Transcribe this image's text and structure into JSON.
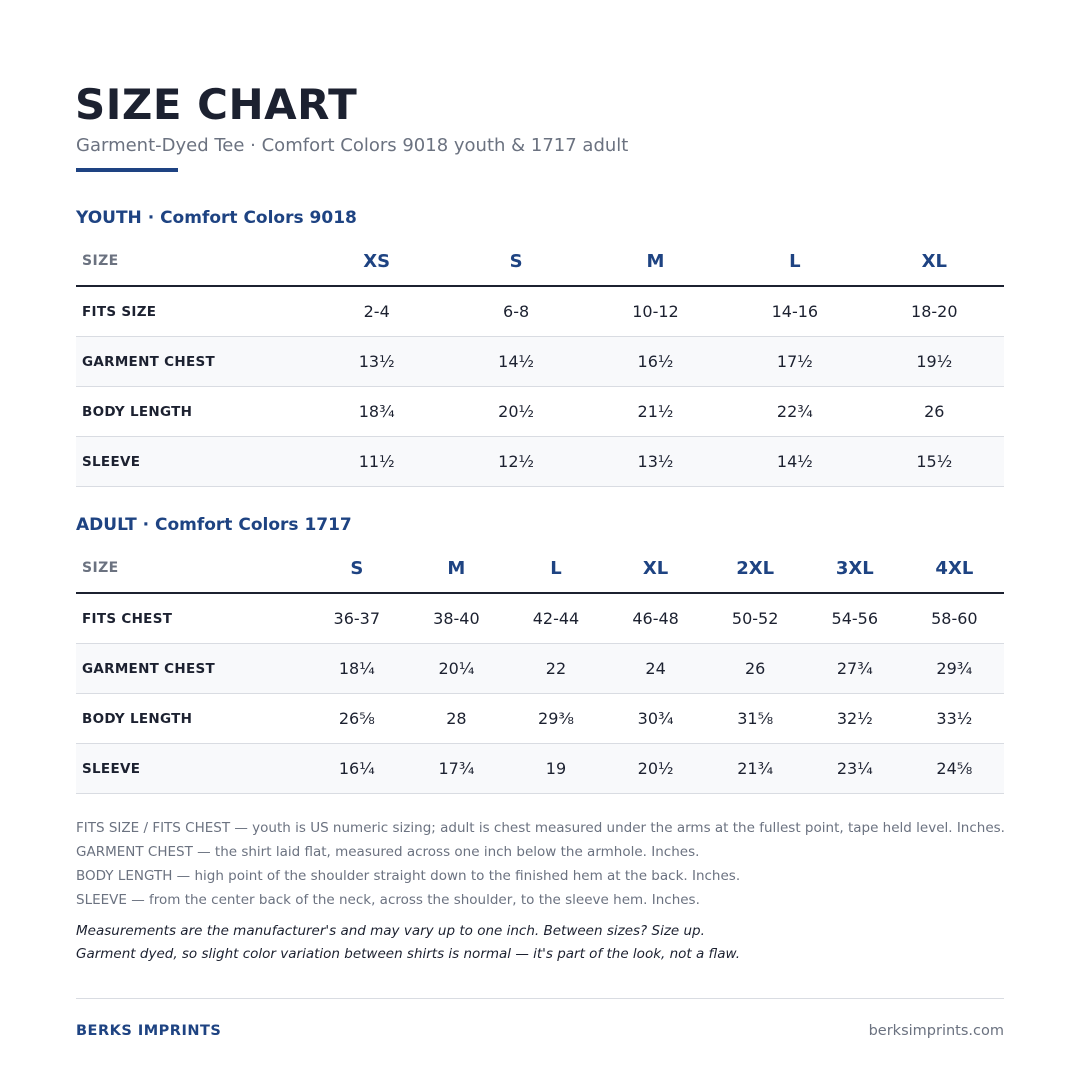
{
  "header": {
    "title": "SIZE CHART",
    "subtitle": "Garment-Dyed Tee  ·  Comfort Colors 9018 youth & 1717 adult"
  },
  "youth": {
    "section_title": "YOUTH  ·  Comfort Colors 9018",
    "corner_label": "SIZE",
    "sizes": [
      "XS",
      "S",
      "M",
      "L",
      "XL"
    ],
    "rows": [
      {
        "label": "FITS SIZE",
        "values": [
          "2-4",
          "6-8",
          "10-12",
          "14-16",
          "18-20"
        ]
      },
      {
        "label": "GARMENT CHEST",
        "values": [
          "13½",
          "14½",
          "16½",
          "17½",
          "19½"
        ]
      },
      {
        "label": "BODY LENGTH",
        "values": [
          "18¾",
          "20½",
          "21½",
          "22¾",
          "26"
        ]
      },
      {
        "label": "SLEEVE",
        "values": [
          "11½",
          "12½",
          "13½",
          "14½",
          "15½"
        ]
      }
    ]
  },
  "adult": {
    "section_title": "ADULT  ·  Comfort Colors 1717",
    "corner_label": "SIZE",
    "sizes": [
      "S",
      "M",
      "L",
      "XL",
      "2XL",
      "3XL",
      "4XL"
    ],
    "rows": [
      {
        "label": "FITS CHEST",
        "values": [
          "36-37",
          "38-40",
          "42-44",
          "46-48",
          "50-52",
          "54-56",
          "58-60"
        ]
      },
      {
        "label": "GARMENT CHEST",
        "values": [
          "18¼",
          "20¼",
          "22",
          "24",
          "26",
          "27¾",
          "29¾"
        ]
      },
      {
        "label": "BODY LENGTH",
        "values": [
          "26⅝",
          "28",
          "29⅜",
          "30¾",
          "31⅝",
          "32½",
          "33½"
        ]
      },
      {
        "label": "SLEEVE",
        "values": [
          "16¼",
          "17¾",
          "19",
          "20½",
          "21¾",
          "23¼",
          "24⅝"
        ]
      }
    ]
  },
  "notes": [
    "FITS SIZE / FITS CHEST — youth is US numeric sizing; adult is chest measured under the arms at the fullest point, tape held level. Inches.",
    "GARMENT CHEST — the shirt laid flat, measured across one inch below the armhole. Inches.",
    "BODY LENGTH — high point of the shoulder straight down to the finished hem at the back. Inches.",
    "SLEEVE — from the center back of the neck, across the shoulder, to the sleeve hem. Inches."
  ],
  "disclaimer": [
    "Measurements are the manufacturer's and may vary up to one inch. Between sizes? Size up.",
    "Garment dyed, so slight color variation between shirts is normal — it's part of the look, not a flaw."
  ],
  "footer": {
    "brand": "BERKS IMPRINTS",
    "website": "berksimprints.com"
  },
  "colors": {
    "accent": "#1e4382",
    "text": "#1c2130",
    "muted": "#6b7280",
    "rule": "#d9dce2",
    "stripe": "#f8f9fb"
  }
}
